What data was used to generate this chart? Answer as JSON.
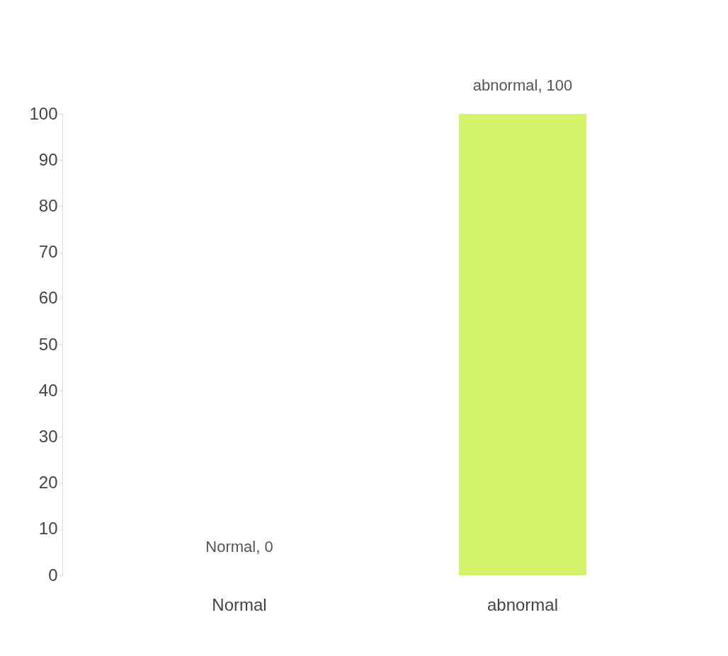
{
  "chart_data": {
    "type": "bar",
    "categories": [
      "Normal",
      "abnormal"
    ],
    "values": [
      0,
      100
    ],
    "colors": [
      "#e8566a",
      "#d4f26a"
    ],
    "value_labels": [
      "Normal, 0",
      "abnormal, 100"
    ],
    "ylim": [
      0,
      100
    ],
    "yticks": [
      0,
      10,
      20,
      30,
      40,
      50,
      60,
      70,
      80,
      90,
      100
    ],
    "grid": false
  }
}
